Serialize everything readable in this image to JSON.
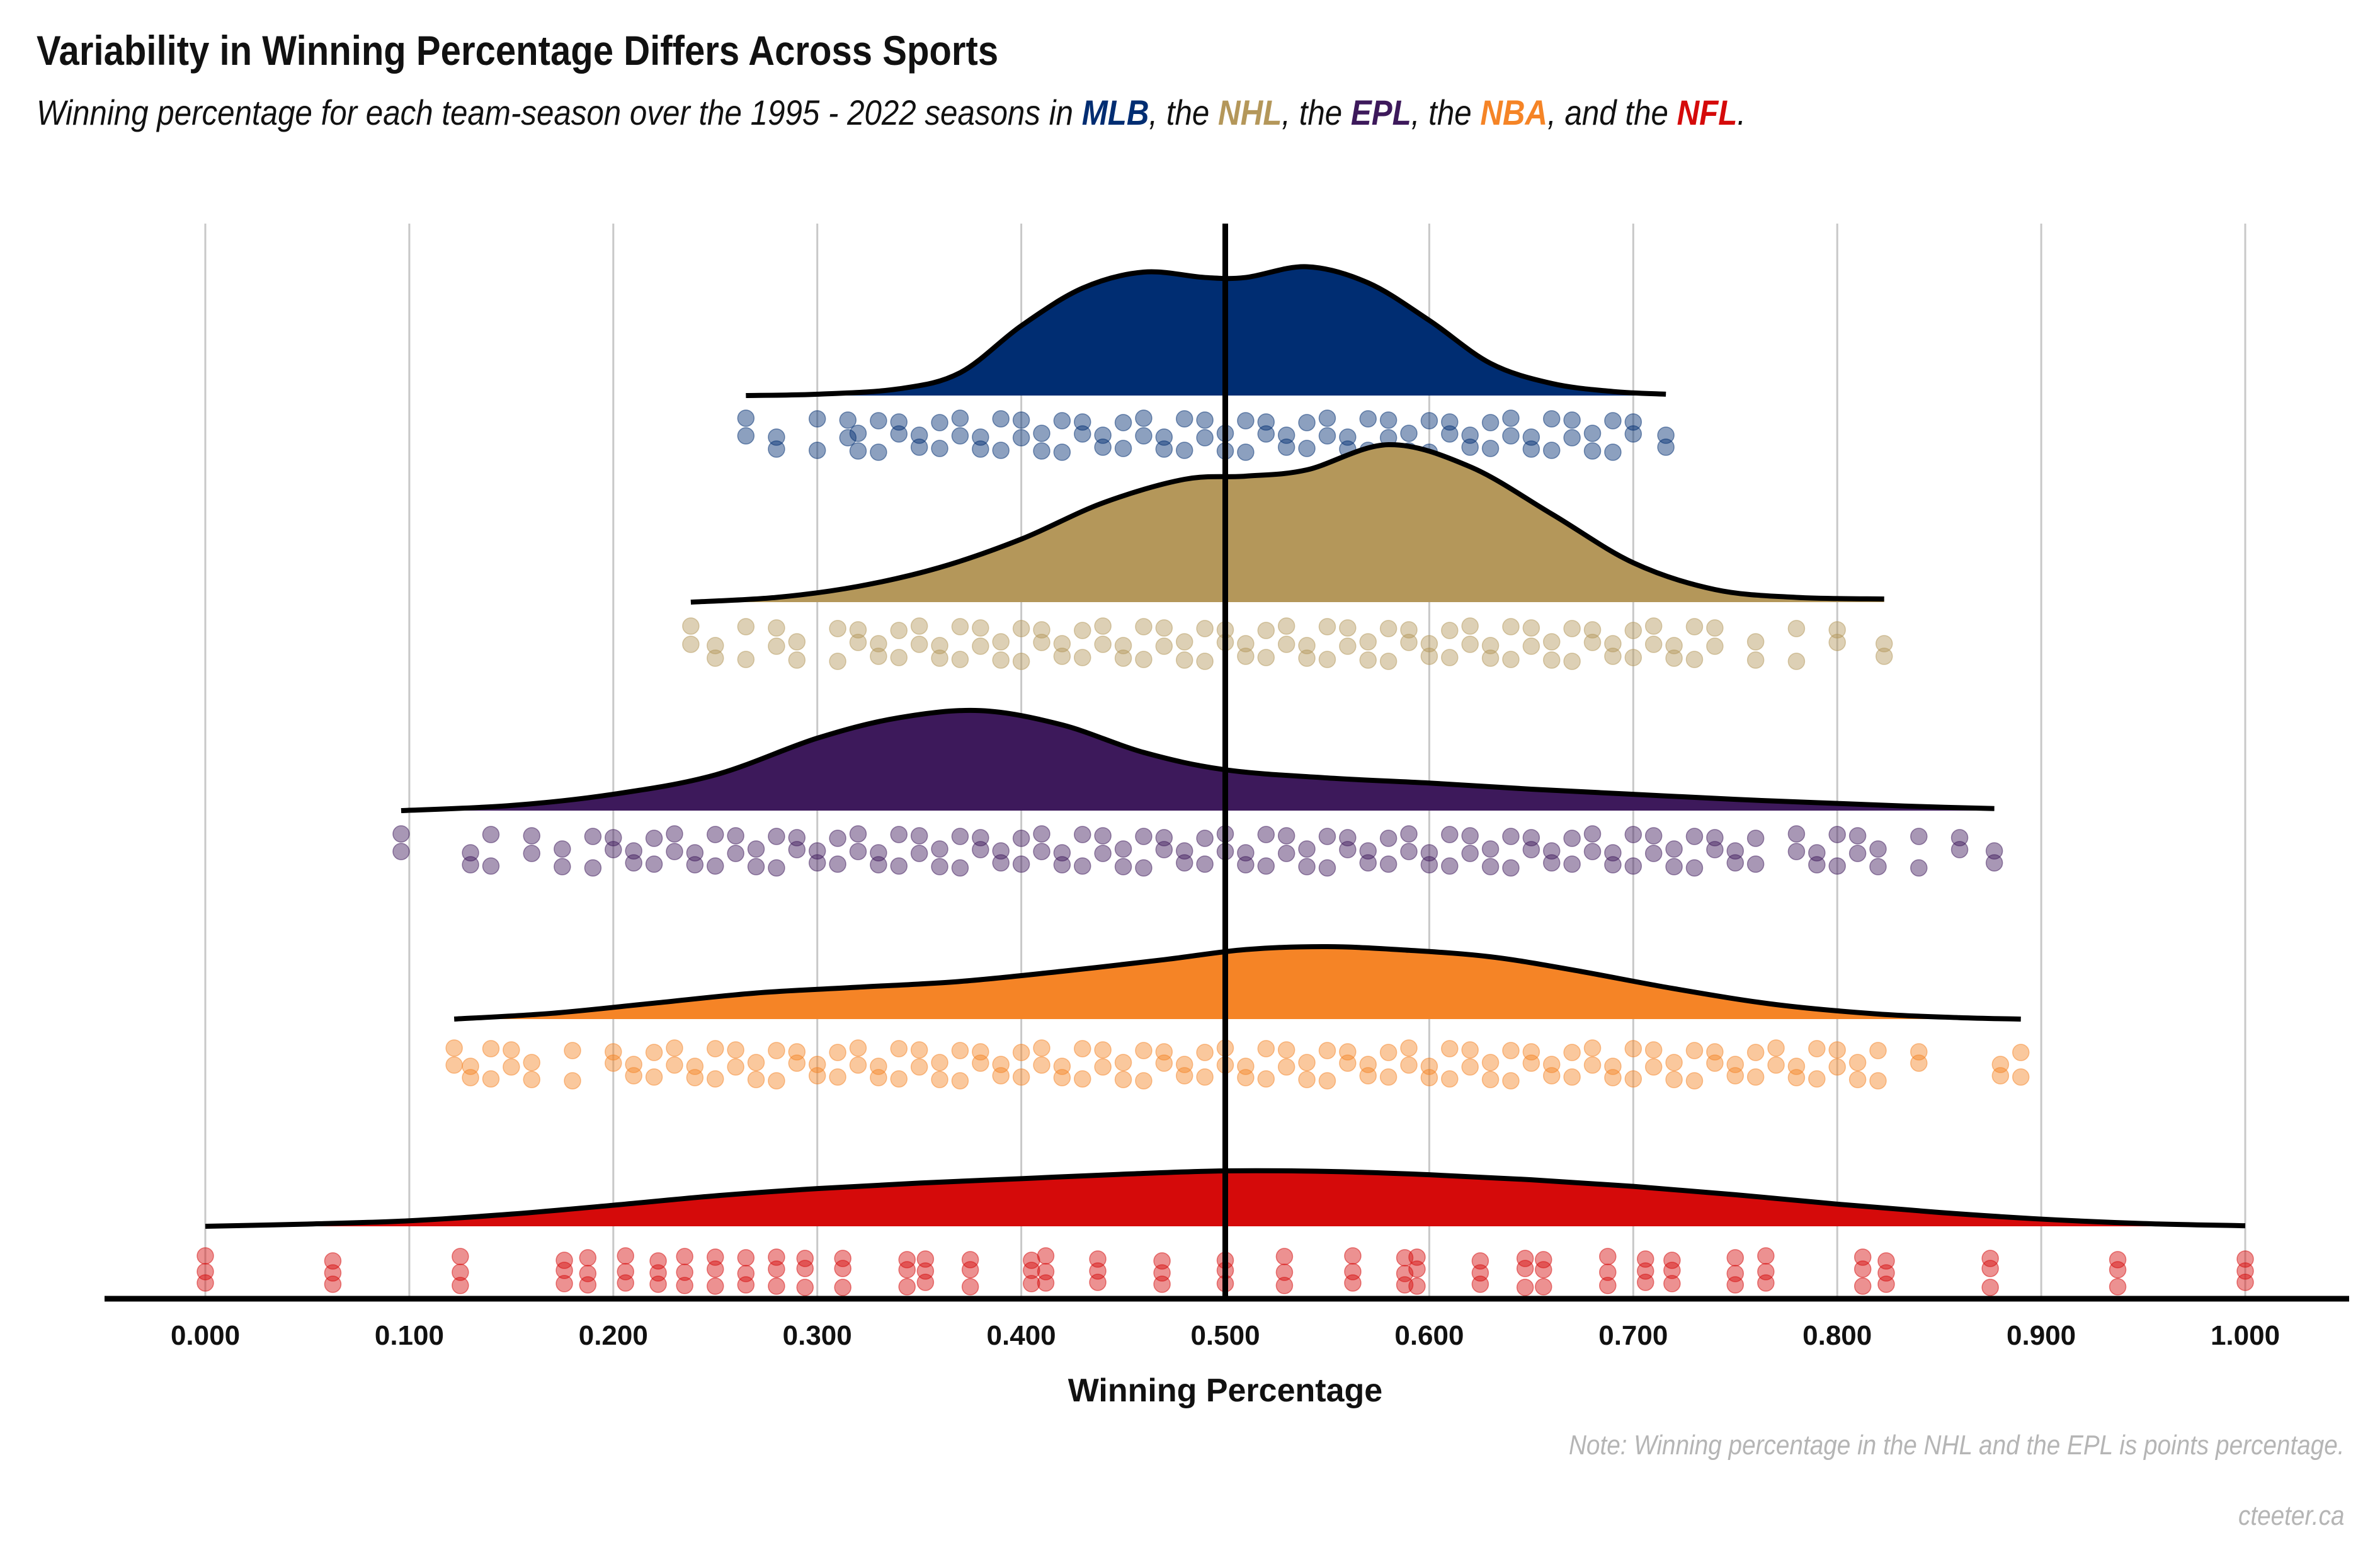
{
  "title": "Variability in Winning Percentage Differs Across Sports",
  "subtitle": {
    "parts": [
      {
        "text": "Winning percentage for each team-season over the 1995 - 2022 seasons in ",
        "league": null
      },
      {
        "text": "MLB",
        "league": "MLB"
      },
      {
        "text": ", the ",
        "league": null
      },
      {
        "text": "NHL",
        "league": "NHL"
      },
      {
        "text": ", the ",
        "league": null
      },
      {
        "text": "EPL",
        "league": "EPL"
      },
      {
        "text": ", the ",
        "league": null
      },
      {
        "text": "NBA",
        "league": "NBA"
      },
      {
        "text": ", and the ",
        "league": null
      },
      {
        "text": "NFL",
        "league": "NFL"
      },
      {
        "text": ".",
        "league": null
      }
    ]
  },
  "note": "Note: Winning percentage in the NHL and the EPL is points percentage.",
  "credit": "cteeter.ca",
  "colors": {
    "MLB": "#002D72",
    "NHL": "#B4975A",
    "EPL": "#3D195B",
    "NBA": "#F58426",
    "NFL": "#D50A0A",
    "grid": "#c8c8c8",
    "text": "#111111"
  },
  "chart_data": {
    "type": "raincloud (half-violin density + jittered scatter)",
    "xlabel": "Winning Percentage",
    "xlim": [
      0,
      1
    ],
    "ticks": [
      0,
      0.1,
      0.2,
      0.3,
      0.4,
      0.5,
      0.6,
      0.7,
      0.8,
      0.9,
      1.0
    ],
    "tick_labels": [
      "0.000",
      "0.100",
      "0.200",
      "0.300",
      "0.400",
      "0.500",
      "0.600",
      "0.700",
      "0.800",
      "0.900",
      "1.000"
    ],
    "reference_line_x": 0.5,
    "grid": "vertical",
    "series": [
      {
        "league": "MLB",
        "range": [
          0.265,
          0.716
        ],
        "density_x": [
          0.265,
          0.3,
          0.34,
          0.37,
          0.4,
          0.43,
          0.46,
          0.49,
          0.51,
          0.54,
          0.57,
          0.6,
          0.63,
          0.66,
          0.69,
          0.716
        ],
        "density_y": [
          0.0,
          0.01,
          0.05,
          0.17,
          0.52,
          0.8,
          0.92,
          0.88,
          0.88,
          0.96,
          0.84,
          0.56,
          0.24,
          0.09,
          0.03,
          0.01
        ],
        "points": [
          0.265,
          0.28,
          0.3,
          0.315,
          0.32,
          0.33,
          0.34,
          0.35,
          0.36,
          0.37,
          0.38,
          0.39,
          0.4,
          0.41,
          0.42,
          0.43,
          0.44,
          0.45,
          0.46,
          0.47,
          0.48,
          0.49,
          0.5,
          0.51,
          0.52,
          0.53,
          0.54,
          0.55,
          0.56,
          0.57,
          0.58,
          0.59,
          0.6,
          0.61,
          0.62,
          0.63,
          0.64,
          0.65,
          0.66,
          0.67,
          0.68,
          0.69,
          0.7,
          0.716
        ]
      },
      {
        "league": "NHL",
        "range": [
          0.238,
          0.823
        ],
        "density_x": [
          0.238,
          0.28,
          0.32,
          0.36,
          0.4,
          0.44,
          0.48,
          0.51,
          0.54,
          0.58,
          0.62,
          0.66,
          0.7,
          0.74,
          0.78,
          0.823
        ],
        "density_y": [
          0.0,
          0.03,
          0.1,
          0.22,
          0.4,
          0.63,
          0.78,
          0.8,
          0.84,
          1.0,
          0.86,
          0.56,
          0.25,
          0.08,
          0.03,
          0.02
        ],
        "points": [
          0.238,
          0.25,
          0.265,
          0.28,
          0.29,
          0.31,
          0.32,
          0.33,
          0.34,
          0.35,
          0.36,
          0.37,
          0.38,
          0.39,
          0.4,
          0.41,
          0.42,
          0.43,
          0.44,
          0.45,
          0.46,
          0.47,
          0.48,
          0.49,
          0.5,
          0.51,
          0.52,
          0.53,
          0.54,
          0.55,
          0.56,
          0.57,
          0.58,
          0.59,
          0.6,
          0.61,
          0.62,
          0.63,
          0.64,
          0.65,
          0.66,
          0.67,
          0.68,
          0.69,
          0.7,
          0.71,
          0.72,
          0.73,
          0.74,
          0.76,
          0.78,
          0.8,
          0.823
        ]
      },
      {
        "league": "EPL",
        "range": [
          0.096,
          0.877
        ],
        "density_x": [
          0.096,
          0.15,
          0.2,
          0.25,
          0.3,
          0.34,
          0.38,
          0.42,
          0.46,
          0.5,
          0.55,
          0.6,
          0.65,
          0.7,
          0.75,
          0.8,
          0.84,
          0.877
        ],
        "density_y": [
          0.0,
          0.05,
          0.16,
          0.35,
          0.71,
          0.91,
          0.98,
          0.84,
          0.57,
          0.4,
          0.32,
          0.27,
          0.21,
          0.16,
          0.11,
          0.07,
          0.04,
          0.02
        ],
        "points": [
          0.096,
          0.13,
          0.14,
          0.16,
          0.175,
          0.19,
          0.2,
          0.21,
          0.22,
          0.23,
          0.24,
          0.25,
          0.26,
          0.27,
          0.28,
          0.29,
          0.3,
          0.31,
          0.32,
          0.33,
          0.34,
          0.35,
          0.36,
          0.37,
          0.38,
          0.39,
          0.4,
          0.41,
          0.42,
          0.43,
          0.44,
          0.45,
          0.46,
          0.47,
          0.48,
          0.49,
          0.5,
          0.51,
          0.52,
          0.53,
          0.54,
          0.55,
          0.56,
          0.57,
          0.58,
          0.59,
          0.6,
          0.61,
          0.62,
          0.63,
          0.64,
          0.65,
          0.66,
          0.67,
          0.68,
          0.69,
          0.7,
          0.71,
          0.72,
          0.73,
          0.74,
          0.75,
          0.76,
          0.78,
          0.79,
          0.8,
          0.81,
          0.82,
          0.84,
          0.86,
          0.877
        ]
      },
      {
        "league": "NBA",
        "range": [
          0.122,
          0.89
        ],
        "density_x": [
          0.122,
          0.17,
          0.22,
          0.27,
          0.32,
          0.37,
          0.42,
          0.47,
          0.51,
          0.55,
          0.59,
          0.63,
          0.67,
          0.72,
          0.77,
          0.82,
          0.86,
          0.89
        ],
        "density_y": [
          0.0,
          0.08,
          0.22,
          0.36,
          0.44,
          0.52,
          0.66,
          0.82,
          0.96,
          1.0,
          0.95,
          0.86,
          0.68,
          0.42,
          0.2,
          0.07,
          0.02,
          0.0
        ],
        "points": [
          0.122,
          0.13,
          0.14,
          0.15,
          0.16,
          0.18,
          0.2,
          0.21,
          0.22,
          0.23,
          0.24,
          0.25,
          0.26,
          0.27,
          0.28,
          0.29,
          0.3,
          0.31,
          0.32,
          0.33,
          0.34,
          0.35,
          0.36,
          0.37,
          0.38,
          0.39,
          0.4,
          0.41,
          0.42,
          0.43,
          0.44,
          0.45,
          0.46,
          0.47,
          0.48,
          0.49,
          0.5,
          0.51,
          0.52,
          0.53,
          0.54,
          0.55,
          0.56,
          0.57,
          0.58,
          0.59,
          0.6,
          0.61,
          0.62,
          0.63,
          0.64,
          0.65,
          0.66,
          0.67,
          0.68,
          0.69,
          0.7,
          0.71,
          0.72,
          0.73,
          0.74,
          0.75,
          0.76,
          0.77,
          0.78,
          0.79,
          0.8,
          0.81,
          0.82,
          0.84,
          0.88,
          0.89
        ]
      },
      {
        "league": "NFL",
        "range": [
          0,
          1
        ],
        "density_x": [
          0.0,
          0.05,
          0.1,
          0.15,
          0.2,
          0.25,
          0.3,
          0.35,
          0.4,
          0.45,
          0.5,
          0.55,
          0.6,
          0.65,
          0.7,
          0.75,
          0.8,
          0.85,
          0.9,
          0.95,
          1.0
        ],
        "density_y": [
          0.0,
          0.04,
          0.1,
          0.22,
          0.38,
          0.55,
          0.68,
          0.78,
          0.86,
          0.94,
          1.0,
          0.99,
          0.93,
          0.84,
          0.72,
          0.57,
          0.4,
          0.25,
          0.13,
          0.05,
          0.01
        ],
        "points": [
          0.0,
          0.0625,
          0.125,
          0.1875,
          0.25,
          0.3125,
          0.375,
          0.4375,
          0.5,
          0.5625,
          0.625,
          0.6875,
          0.75,
          0.8125,
          0.875,
          0.9375,
          1.0,
          0.176,
          0.206,
          0.222,
          0.235,
          0.265,
          0.28,
          0.294,
          0.344,
          0.353,
          0.405,
          0.412,
          0.469,
          0.529,
          0.588,
          0.594,
          0.647,
          0.656,
          0.706,
          0.719,
          0.765,
          0.824
        ]
      }
    ]
  }
}
